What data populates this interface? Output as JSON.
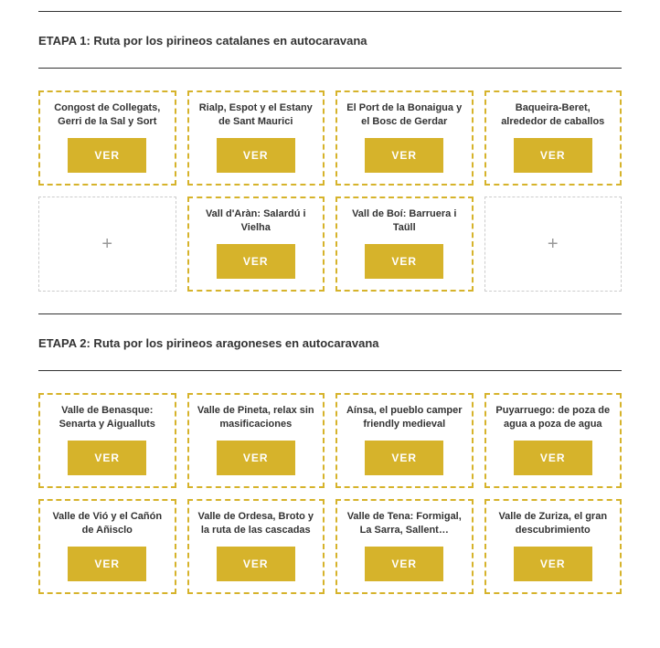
{
  "colors": {
    "accent": "#d6b32b",
    "border_empty": "#cccccc",
    "text": "#333333",
    "rule": "#333333",
    "btn_text": "#ffffff",
    "plus": "#999999",
    "background": "#ffffff"
  },
  "button_label": "VER",
  "plus_glyph": "+",
  "stages": [
    {
      "title": "ETAPA 1: Ruta por los pirineos catalanes en autocaravana",
      "cards": [
        {
          "type": "item",
          "title": "Congost de Collegats, Gerri de la Sal y Sort"
        },
        {
          "type": "item",
          "title": "Rialp, Espot y el Estany de Sant Maurici"
        },
        {
          "type": "item",
          "title": "El Port de la Bonaigua y el Bosc de Gerdar"
        },
        {
          "type": "item",
          "title": "Baqueira-Beret, alrededor de caballos"
        },
        {
          "type": "empty"
        },
        {
          "type": "item",
          "title": "Vall d'Aràn: Salardú i Vielha"
        },
        {
          "type": "item",
          "title": "Vall de Boí: Barruera i Taüll"
        },
        {
          "type": "empty"
        }
      ]
    },
    {
      "title": "ETAPA 2: Ruta por los pirineos aragoneses en autocaravana",
      "cards": [
        {
          "type": "item",
          "title": "Valle de Benasque: Senarta y Aigualluts"
        },
        {
          "type": "item",
          "title": "Valle de Pineta, relax sin masificaciones"
        },
        {
          "type": "item",
          "title": "Aínsa, el pueblo camper friendly medieval"
        },
        {
          "type": "item",
          "title": "Puyarruego: de poza de agua a poza de agua"
        },
        {
          "type": "item",
          "title": "Valle de Vió y el Cañón de Añisclo"
        },
        {
          "type": "item",
          "title": "Valle de Ordesa, Broto y la ruta de las cascadas"
        },
        {
          "type": "item",
          "title": "Valle de Tena: Formigal, La Sarra, Sallent…"
        },
        {
          "type": "item",
          "title": "Valle de Zuriza, el gran descubrimiento"
        }
      ]
    }
  ]
}
